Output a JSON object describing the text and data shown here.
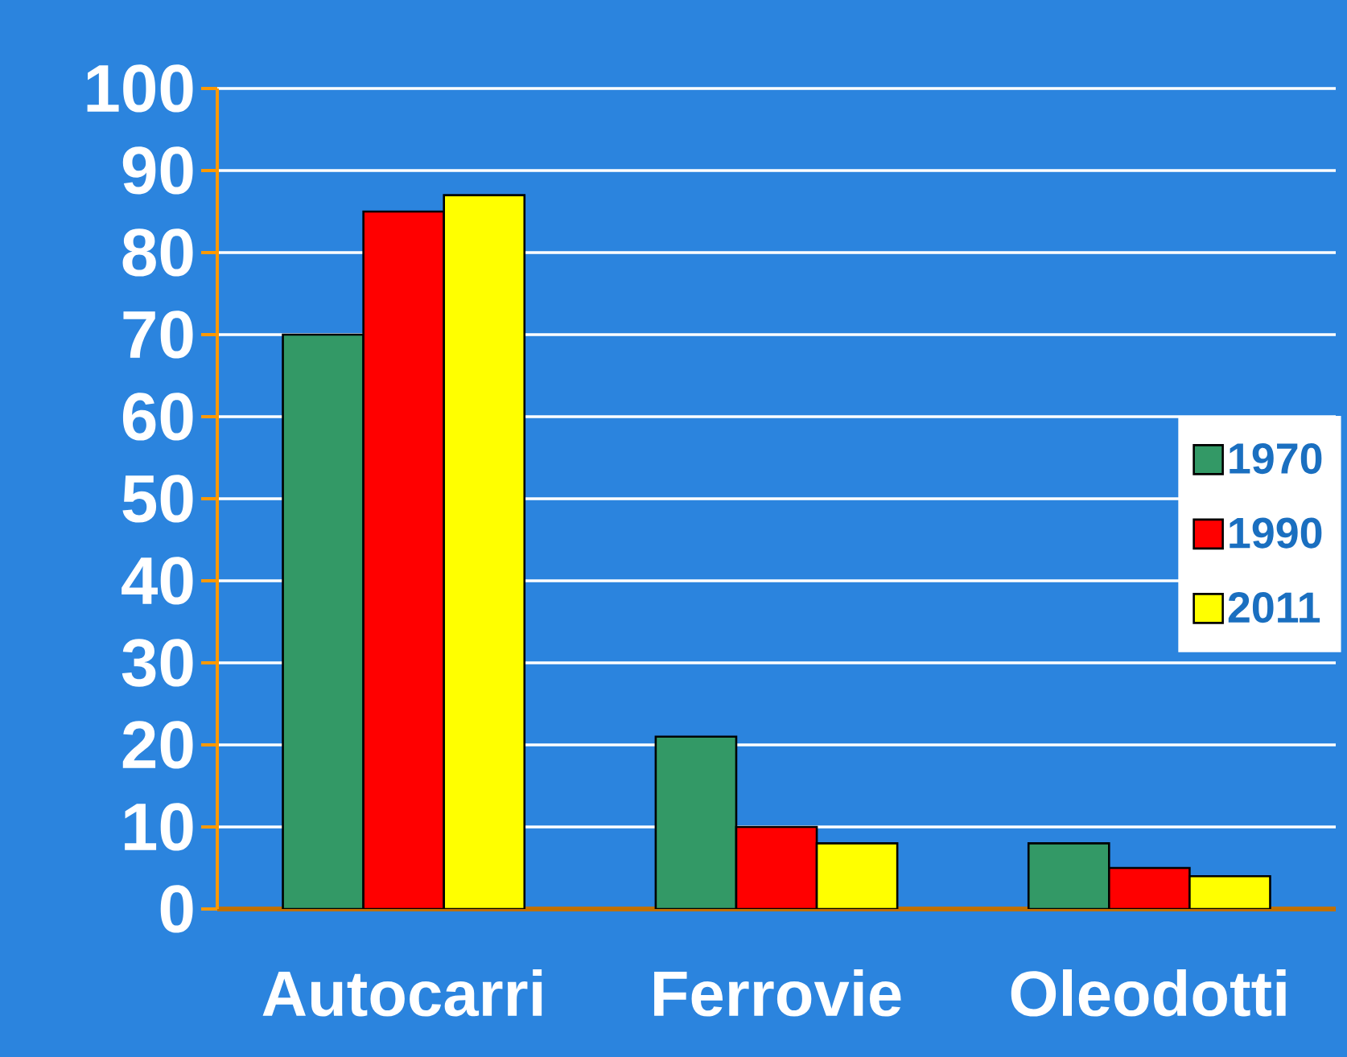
{
  "chart_data": {
    "type": "bar",
    "categories": [
      "Autocarri",
      "Ferrovie",
      "Oleodotti"
    ],
    "series": [
      {
        "name": "1970",
        "color": "#339966",
        "values": [
          70,
          21,
          8
        ]
      },
      {
        "name": "1990",
        "color": "#ff0000",
        "values": [
          85,
          10,
          5
        ]
      },
      {
        "name": "2011",
        "color": "#ffff00",
        "values": [
          87,
          8,
          4
        ]
      }
    ],
    "ylim": [
      0,
      100
    ],
    "yticks": [
      0,
      10,
      20,
      30,
      40,
      50,
      60,
      70,
      80,
      90,
      100
    ],
    "grid": "y",
    "legend": "right"
  }
}
